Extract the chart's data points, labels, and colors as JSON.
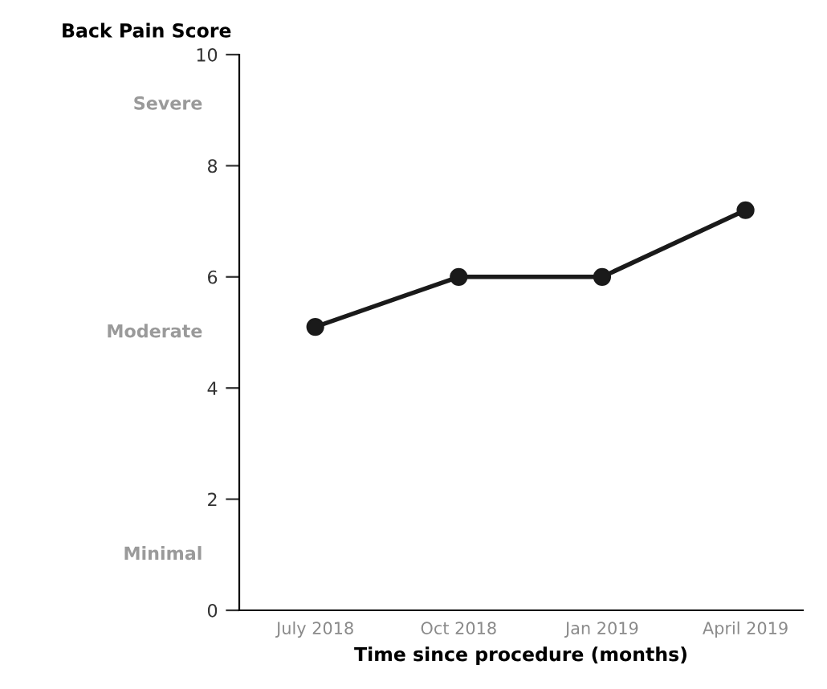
{
  "chart_data": {
    "type": "line",
    "ylabel": "Back Pain Score",
    "xlabel": "Time since procedure (months)",
    "categories": [
      "July 2018",
      "Oct 2018",
      "Jan 2019",
      "April 2019"
    ],
    "series": [
      {
        "color": "#1a1a1a",
        "values": [
          5.1,
          6.0,
          6.0,
          7.2
        ]
      }
    ],
    "ylim": [
      0,
      10
    ],
    "yticks": [
      0,
      2,
      4,
      6,
      8,
      10
    ],
    "marker": "circle",
    "line_style": "solid",
    "grid": false,
    "legend": false,
    "annotations": [
      "Severe",
      "Moderate",
      "Minimal"
    ]
  }
}
